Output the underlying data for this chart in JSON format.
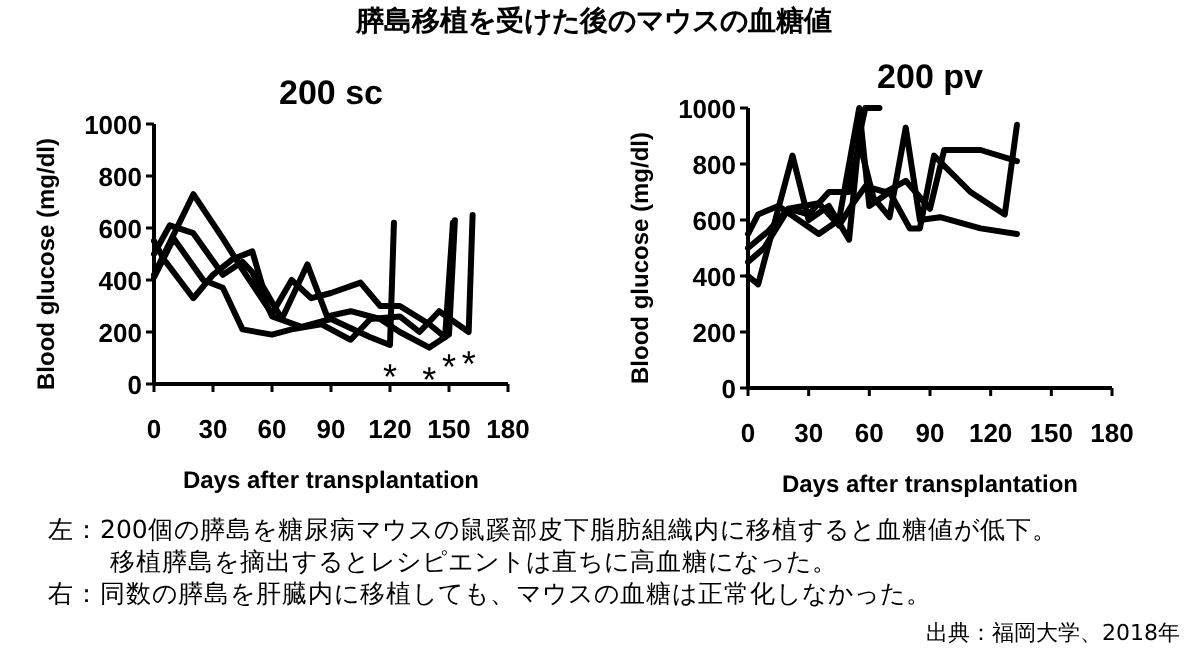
{
  "chart_data": [
    {
      "type": "line",
      "title": "200 sc",
      "xlabel": "Days after transplantation",
      "ylabel": "Blood glucose (mg/dl)",
      "xlim": [
        0,
        180
      ],
      "xticks": [
        0,
        30,
        60,
        90,
        120,
        150,
        180
      ],
      "ylim": [
        0,
        1000
      ],
      "yticks": [
        0,
        200,
        400,
        600,
        800,
        1000
      ],
      "grid": false,
      "line_style": "solid",
      "marker": "none",
      "series": [
        {
          "color": "#000000",
          "x": [
            0,
            20,
            35,
            45,
            60,
            70,
            80,
            90,
            105,
            115,
            125,
            140,
            148,
            152
          ],
          "values": [
            420,
            730,
            560,
            440,
            270,
            400,
            330,
            350,
            390,
            300,
            300,
            230,
            180,
            620
          ]
        },
        {
          "color": "#000000",
          "x": [
            0,
            8,
            20,
            35,
            45,
            50,
            60,
            75,
            90,
            110,
            120,
            122
          ],
          "values": [
            500,
            610,
            580,
            420,
            470,
            430,
            260,
            220,
            250,
            180,
            150,
            620
          ]
        },
        {
          "color": "#000000",
          "x": [
            0,
            5,
            20,
            30,
            40,
            50,
            55,
            65,
            78,
            88,
            100,
            115,
            125,
            140,
            150,
            153
          ],
          "values": [
            550,
            480,
            330,
            420,
            480,
            510,
            380,
            250,
            460,
            260,
            280,
            250,
            200,
            140,
            190,
            630
          ]
        },
        {
          "color": "#000000",
          "x": [
            0,
            10,
            25,
            35,
            45,
            60,
            70,
            85,
            100,
            110,
            125,
            135,
            145,
            160,
            162
          ],
          "values": [
            410,
            560,
            400,
            370,
            210,
            190,
            210,
            230,
            170,
            250,
            260,
            200,
            280,
            200,
            650
          ]
        }
      ],
      "annotations": [
        "膵島移植を受けた後のマウスの血糖値",
        "左：200個の膵島を糖尿病マウスの鼠蹊部皮下脂肪組織内に移植すると血糖値が低下。",
        "移植膵島を摘出するとレシピエントは直ちに高血糖になった。",
        "右：同数の膵島を肝臓内に移植しても、マウスの血糖は正常化しなかった。",
        "出典：福岡大学、2018年",
        {
          "text": "*",
          "x": 120,
          "y": 150
        },
        {
          "text": "*",
          "x": 140,
          "y": 140
        },
        {
          "text": "*",
          "x": 150,
          "y": 190
        },
        {
          "text": "*",
          "x": 160,
          "y": 200
        }
      ]
    },
    {
      "type": "line",
      "title": "200 pv",
      "xlabel": "Days after transplantation",
      "ylabel": "Blood glucose (mg/dl)",
      "xlim": [
        0,
        180
      ],
      "xticks": [
        0,
        30,
        60,
        90,
        120,
        150,
        180
      ],
      "ylim": [
        0,
        1000
      ],
      "yticks": [
        0,
        200,
        400,
        600,
        800,
        1000
      ],
      "grid": false,
      "line_style": "solid",
      "marker": "none",
      "series": [
        {
          "color": "#000000",
          "x": [
            0,
            5,
            12,
            22,
            30,
            40,
            50,
            55,
            58,
            65
          ],
          "values": [
            400,
            370,
            560,
            830,
            600,
            650,
            530,
            900,
            1000,
            1000
          ]
        },
        {
          "color": "#000000",
          "x": [
            0,
            5,
            15,
            25,
            35,
            45,
            55,
            60,
            70,
            80,
            85,
            92,
            110,
            127,
            133
          ],
          "values": [
            550,
            620,
            650,
            600,
            550,
            600,
            1000,
            650,
            700,
            570,
            570,
            830,
            700,
            620,
            940
          ]
        },
        {
          "color": "#000000",
          "x": [
            0,
            8,
            20,
            30,
            40,
            50,
            55,
            62,
            70,
            78,
            85,
            95,
            115,
            133
          ],
          "values": [
            450,
            500,
            640,
            620,
            700,
            700,
            880,
            680,
            610,
            930,
            600,
            610,
            570,
            550
          ]
        },
        {
          "color": "#000000",
          "x": [
            0,
            10,
            20,
            35,
            45,
            52,
            58,
            68,
            78,
            90,
            97,
            115,
            133
          ],
          "values": [
            500,
            560,
            640,
            660,
            580,
            660,
            720,
            700,
            740,
            640,
            850,
            850,
            810
          ]
        }
      ]
    }
  ]
}
